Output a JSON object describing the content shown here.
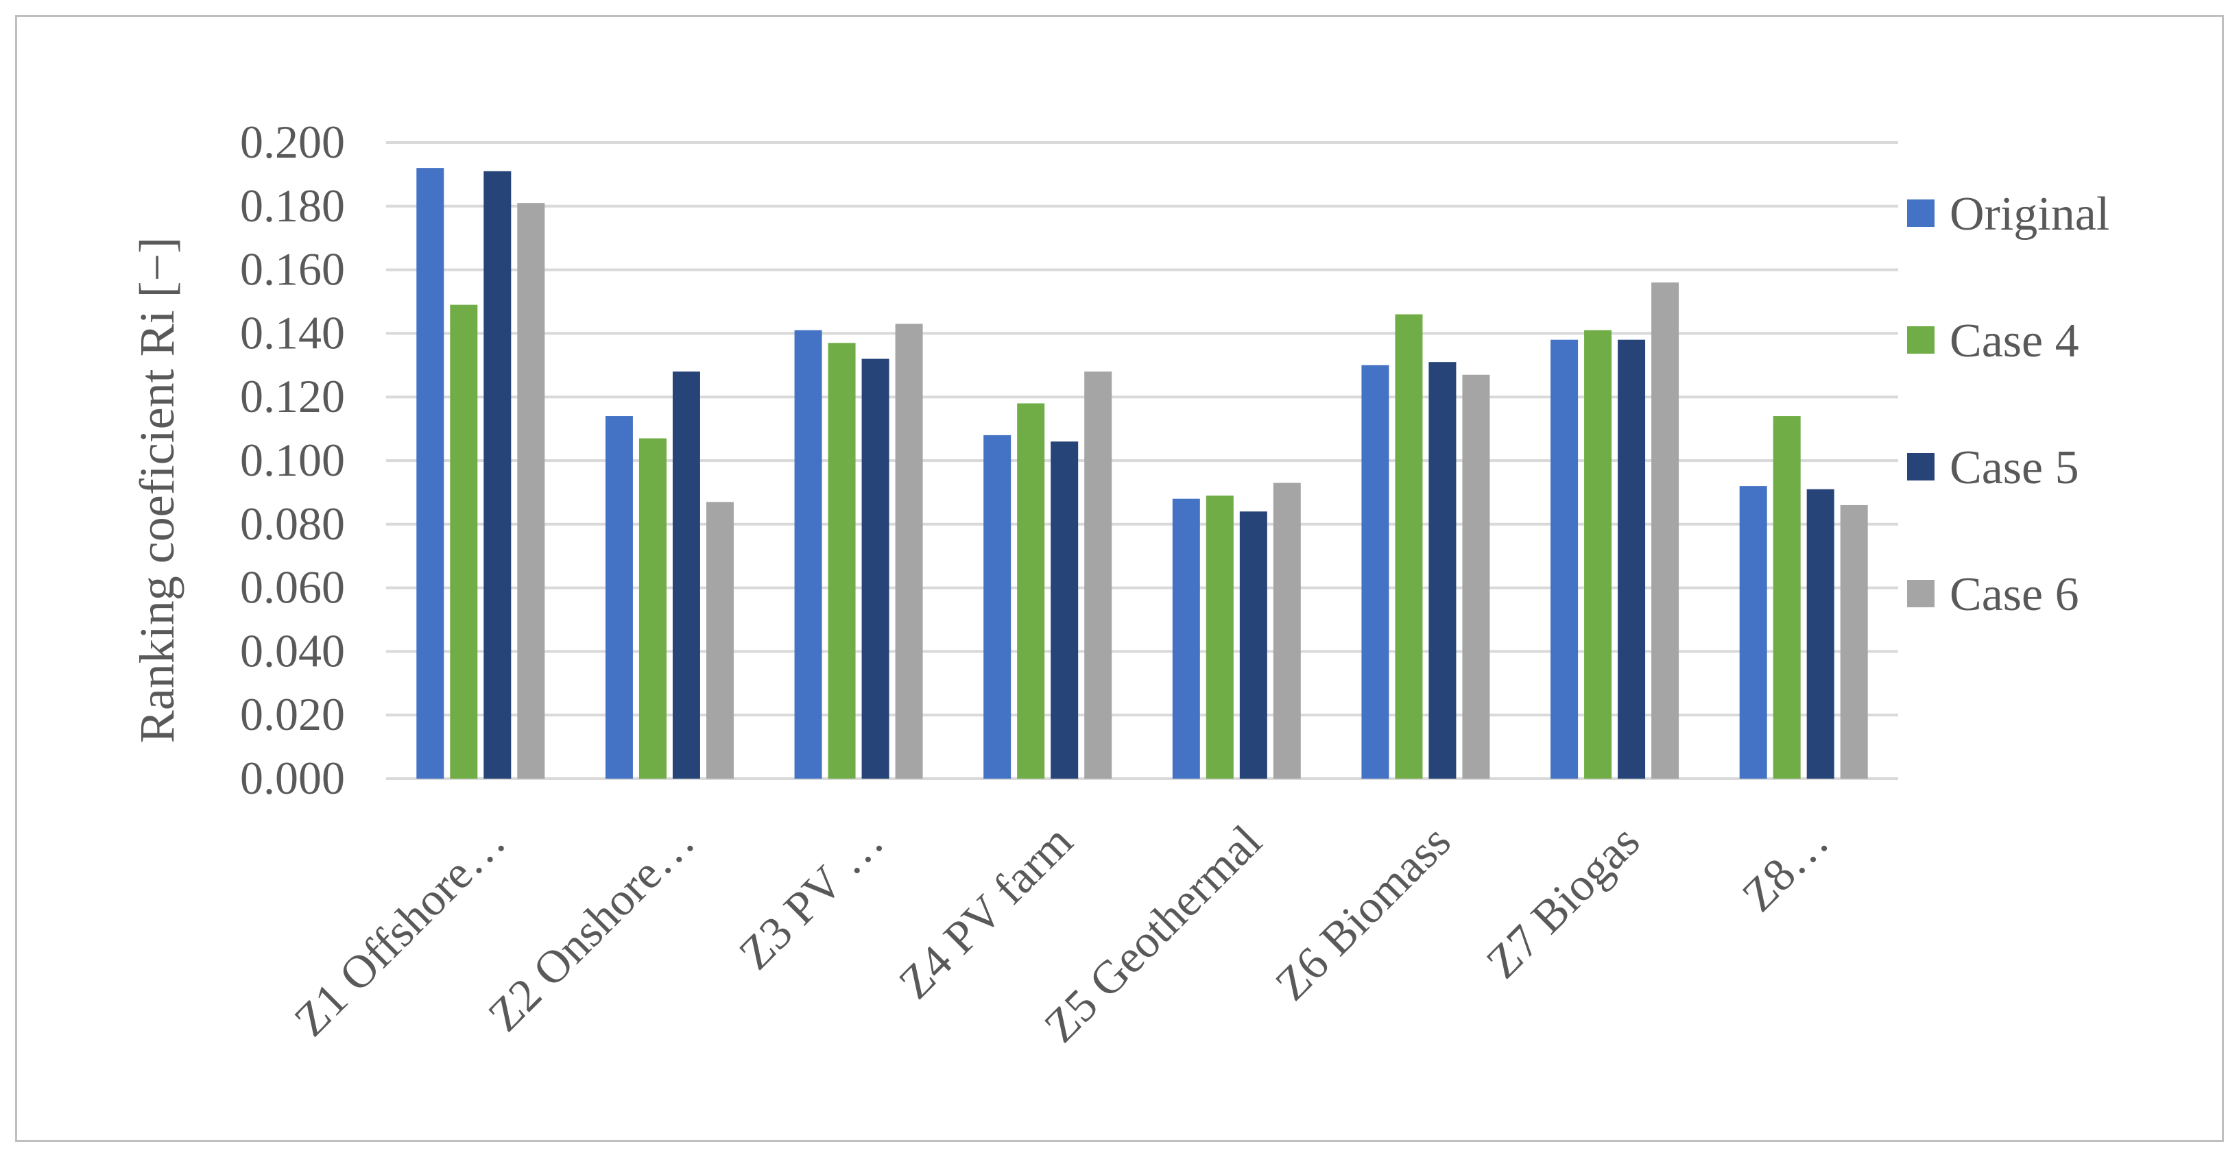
{
  "chart_data": {
    "type": "bar",
    "title": "",
    "xlabel": "",
    "ylabel": "Ranking coeficient Ri  [−]",
    "ylim": [
      0,
      0.2
    ],
    "yticks": [
      "0.000",
      "0.020",
      "0.040",
      "0.060",
      "0.080",
      "0.100",
      "0.120",
      "0.140",
      "0.160",
      "0.180",
      "0.200"
    ],
    "grid": true,
    "legend_position": "right",
    "categories": [
      "Z1 Offshore…",
      "Z2 Onshore…",
      "Z3 PV …",
      "Z4 PV farm",
      "Z5 Geothermal",
      "Z6 Biomass",
      "Z7 Biogas",
      "Z8…"
    ],
    "series": [
      {
        "name": "Original",
        "color": "#4472c4",
        "values": [
          0.192,
          0.114,
          0.141,
          0.108,
          0.088,
          0.13,
          0.138,
          0.092
        ]
      },
      {
        "name": "Case 4",
        "color": "#70ad47",
        "values": [
          0.149,
          0.107,
          0.137,
          0.118,
          0.089,
          0.146,
          0.141,
          0.114
        ]
      },
      {
        "name": "Case 5",
        "color": "#264478",
        "values": [
          0.191,
          0.128,
          0.132,
          0.106,
          0.084,
          0.131,
          0.138,
          0.091
        ]
      },
      {
        "name": "Case 6",
        "color": "#a5a5a5",
        "values": [
          0.181,
          0.087,
          0.143,
          0.128,
          0.093,
          0.127,
          0.156,
          0.086
        ]
      }
    ]
  }
}
